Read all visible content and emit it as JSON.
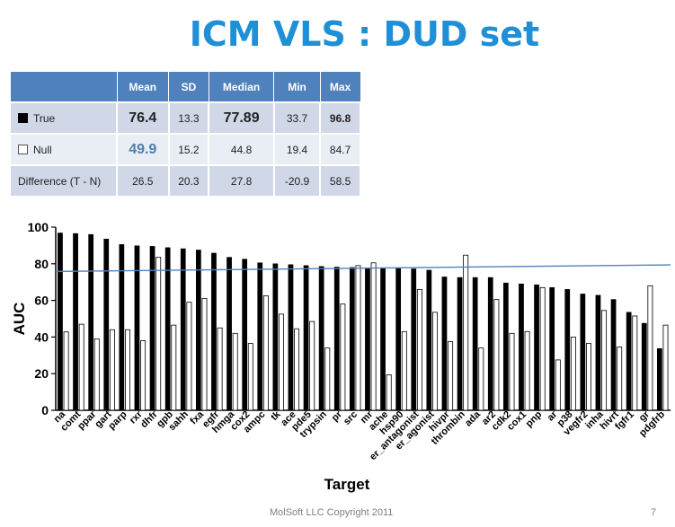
{
  "slide": {
    "title": "ICM VLS : DUD set",
    "footer": "MolSoft LLC Copyright 2011",
    "page_number": "7"
  },
  "stats_table": {
    "headers": [
      "",
      "Mean",
      "SD",
      "Median",
      "Min",
      "Max"
    ],
    "rows": [
      {
        "label": "True",
        "marker": "filled-square",
        "mean": "76.4",
        "sd": "13.3",
        "median": "77.89",
        "min": "33.7",
        "max": "96.8"
      },
      {
        "label": "Null",
        "marker": "empty-square",
        "mean": "49.9",
        "sd": "15.2",
        "median": "44.8",
        "min": "19.4",
        "max": "84.7"
      },
      {
        "label": "Difference (T - N)",
        "marker": "",
        "mean": "26.5",
        "sd": "20.3",
        "median": "27.8",
        "min": "-20.9",
        "max": "58.5"
      }
    ]
  },
  "colors": {
    "title": "#1f8fd6",
    "table_header": "#4f81bd",
    "table_row_dark": "#d0d8e8",
    "table_row_light": "#e9edf4",
    "true_bar": "#000000",
    "null_bar": "#ffffff",
    "mean_line": "#4f81bd"
  },
  "chart_data": {
    "type": "bar",
    "xlabel": "Target",
    "ylabel": "AUC",
    "ylim": [
      0,
      100
    ],
    "yticks": [
      0,
      20,
      40,
      60,
      80,
      100
    ],
    "grid": false,
    "legend": "none",
    "categories": [
      "na",
      "comt",
      "ppar",
      "gart",
      "parp",
      "rxr",
      "dhfr",
      "gpb",
      "sahh",
      "fxa",
      "egfr",
      "hmga",
      "cox2",
      "ampc",
      "tk",
      "ace",
      "pde5",
      "trypsin",
      "pr",
      "src",
      "mr",
      "ache",
      "hsp90",
      "er_antagonist",
      "er_agonist",
      "hivpr",
      "thrombin",
      "ada",
      "ar2",
      "cdk2",
      "cox1",
      "pnp",
      "ar",
      "p38",
      "vegfr2",
      "inha",
      "hivrt",
      "fgfr1",
      "gr",
      "pdgfrb"
    ],
    "series": [
      {
        "values": [
          96.8,
          96.5,
          96.0,
          93.5,
          90.5,
          89.8,
          89.5,
          88.8,
          88.2,
          87.5,
          85.8,
          83.5,
          82.5,
          80.5,
          80.0,
          79.5,
          79.0,
          78.5,
          78.2,
          78.0,
          77.8,
          77.8,
          77.5,
          77.2,
          76.5,
          72.8,
          72.5,
          72.5,
          72.5,
          69.5,
          69.0,
          68.5,
          67.0,
          66.0,
          63.5,
          62.8,
          60.5,
          53.5,
          47.5,
          33.7
        ]
      },
      {
        "values": [
          42.8,
          47.0,
          39.0,
          44.0,
          44.0,
          38.0,
          83.5,
          46.5,
          59.0,
          61.0,
          45.0,
          42.0,
          36.5,
          62.5,
          52.5,
          44.5,
          48.5,
          34.0,
          58.0,
          79.0,
          80.5,
          19.4,
          43.0,
          66.0,
          53.5,
          37.5,
          84.7,
          34.0,
          60.5,
          42.0,
          43.0,
          67.0,
          27.5,
          40.0,
          36.5,
          54.5,
          34.5,
          51.5,
          68.0,
          46.5
        ]
      }
    ],
    "reference_line": {
      "x_start": 0,
      "x_end": 40,
      "y_start": 75.8,
      "y_end": 79.4
    }
  }
}
